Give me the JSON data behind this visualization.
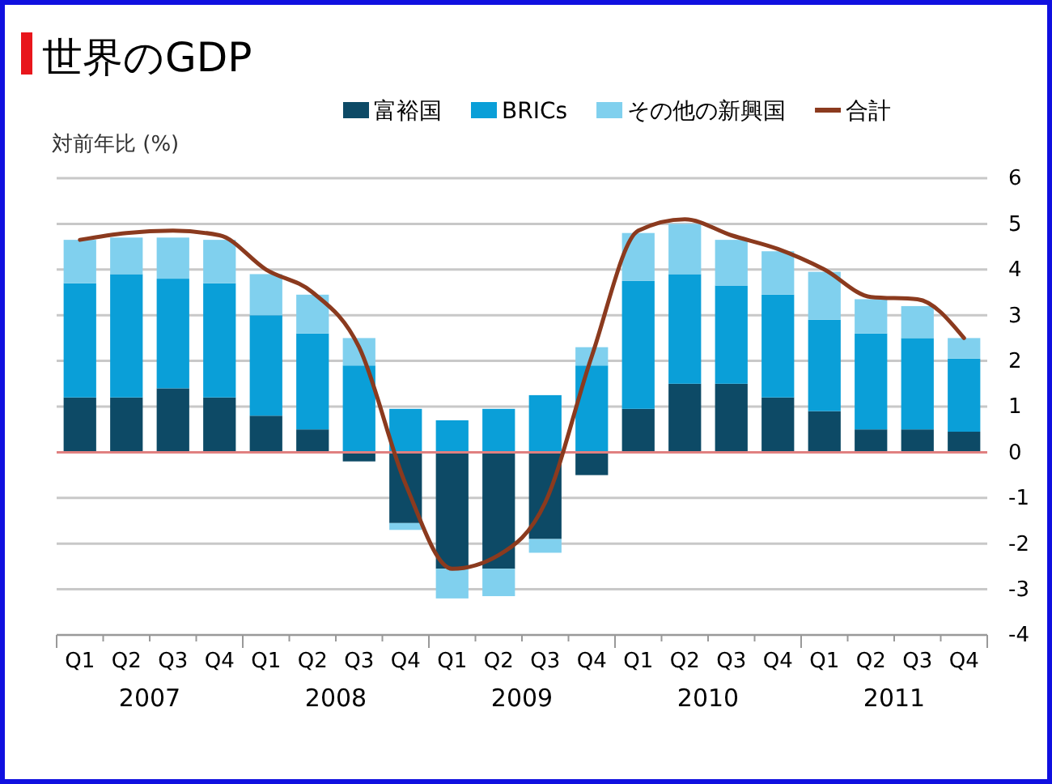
{
  "chart_data": {
    "type": "bar",
    "title": "世界のGDP",
    "ylabel": "対前年比 (%)",
    "stacked": true,
    "categories": [
      "Q1",
      "Q2",
      "Q3",
      "Q4",
      "Q1",
      "Q2",
      "Q3",
      "Q4",
      "Q1",
      "Q2",
      "Q3",
      "Q4",
      "Q1",
      "Q2",
      "Q3",
      "Q4",
      "Q1",
      "Q2",
      "Q3",
      "Q4"
    ],
    "series": [
      {
        "name": "富裕国",
        "color": "#0d4a66",
        "values": [
          1.2,
          1.2,
          1.4,
          1.2,
          0.8,
          0.5,
          -0.2,
          -1.55,
          -2.55,
          -2.55,
          -1.9,
          -0.5,
          0.95,
          1.5,
          1.5,
          1.2,
          0.9,
          0.5,
          0.5,
          0.45
        ]
      },
      {
        "name": "BRICs",
        "color": "#0a9fd8",
        "values": [
          2.5,
          2.7,
          2.4,
          2.5,
          2.2,
          2.1,
          1.9,
          0.95,
          0.7,
          0.95,
          1.25,
          1.9,
          2.8,
          2.4,
          2.15,
          2.25,
          2.0,
          2.1,
          2.0,
          1.6
        ]
      },
      {
        "name": "その他の新興国",
        "color": "#80d0ee",
        "values": [
          0.95,
          0.8,
          0.9,
          0.95,
          0.9,
          0.85,
          0.6,
          -0.15,
          -0.65,
          -0.6,
          -0.3,
          0.4,
          1.05,
          1.1,
          1.0,
          0.95,
          1.05,
          0.75,
          0.7,
          0.45
        ]
      },
      {
        "name": "合計",
        "type": "line",
        "color": "#8b3a1e",
        "values": [
          4.65,
          4.8,
          4.85,
          4.75,
          4.0,
          3.5,
          2.3,
          -0.7,
          -2.55,
          -2.25,
          -1.1,
          2.1,
          4.85,
          5.1,
          4.75,
          4.45,
          4.0,
          3.4,
          3.35,
          2.5
        ]
      }
    ],
    "ylim": [
      -4,
      6
    ],
    "yticks": [
      -4,
      -3,
      -2,
      -1,
      0,
      1,
      2,
      3,
      4,
      5,
      6
    ],
    "grid": "y",
    "ref_lines": [
      {
        "axis": "y",
        "value": 0,
        "color": "#e08080"
      }
    ],
    "legend": "top right",
    "annotations": [
      "2007",
      "2008",
      "2009",
      "2010",
      "2011"
    ]
  }
}
